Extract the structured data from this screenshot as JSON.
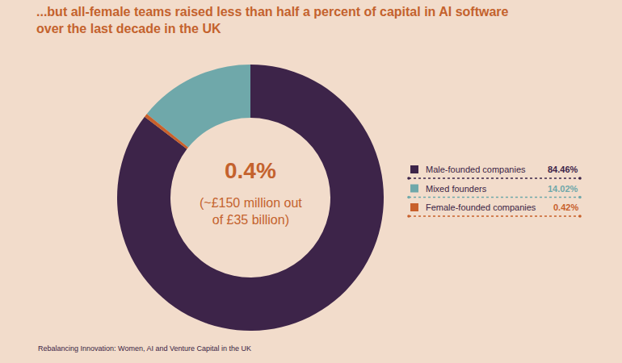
{
  "chart_data": {
    "type": "pie",
    "title": "...but all-female teams raised less than half a percent of capital in AI software\nover the last decade in the UK",
    "categories": [
      "Male-founded companies",
      "Mixed founders",
      "Female-founded companies"
    ],
    "values": [
      84.46,
      14.02,
      0.42
    ],
    "value_labels": [
      "84.46%",
      "14.02%",
      "0.42%"
    ],
    "colors": [
      "#3d2449",
      "#6fa8aa",
      "#c8602b"
    ],
    "center_text": "0.4%",
    "center_subtext": "(~£150 million out\nof £35 billion)",
    "source": "Rebalancing Innovation: Women, AI and Venture Capital in the UK"
  }
}
